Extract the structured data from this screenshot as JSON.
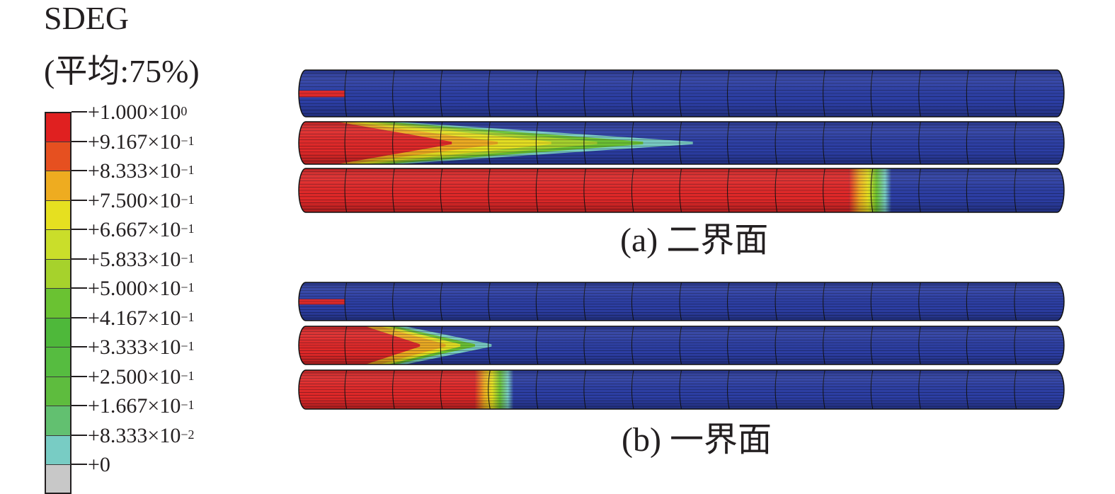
{
  "legend": {
    "title": "SDEG",
    "subtitle": "(平均:75%)",
    "colors": [
      "#e02020",
      "#e65020",
      "#eeac20",
      "#e6e020",
      "#cade2a",
      "#a6d22c",
      "#6ac232",
      "#4eb83a",
      "#56bc40",
      "#5ebc3e",
      "#62c070",
      "#78ccc4",
      "#c8c8c8"
    ],
    "ticks": [
      {
        "base": "+1.000×10",
        "exp": "0"
      },
      {
        "base": "+9.167×10",
        "exp": "−1"
      },
      {
        "base": "+8.333×10",
        "exp": "−1"
      },
      {
        "base": "+7.500×10",
        "exp": "−1"
      },
      {
        "base": "+6.667×10",
        "exp": "−1"
      },
      {
        "base": "+5.833×10",
        "exp": "−1"
      },
      {
        "base": "+5.000×10",
        "exp": "−1"
      },
      {
        "base": "+4.167×10",
        "exp": "−1"
      },
      {
        "base": "+3.333×10",
        "exp": "−1"
      },
      {
        "base": "+2.500×10",
        "exp": "−1"
      },
      {
        "base": "+1.667×10",
        "exp": "−1"
      },
      {
        "base": "+8.333×10",
        "exp": "−2"
      },
      {
        "base": "+0",
        "exp": ""
      }
    ]
  },
  "panels": [
    {
      "caption": "(a) 二界面",
      "rods": [
        {
          "damage_extent": 0.06,
          "type": "initial_crack"
        },
        {
          "damage_extent": 0.5,
          "type": "wedge"
        },
        {
          "damage_extent": 0.73,
          "type": "front"
        }
      ]
    },
    {
      "caption": "(b) 一界面",
      "rods": [
        {
          "damage_extent": 0.06,
          "type": "initial_crack"
        },
        {
          "damage_extent": 0.24,
          "type": "wedge"
        },
        {
          "damage_extent": 0.24,
          "type": "front"
        }
      ]
    }
  ],
  "colors": {
    "undamaged": "#2c3ea4",
    "damaged": "#e02828",
    "grid": "#111111"
  }
}
